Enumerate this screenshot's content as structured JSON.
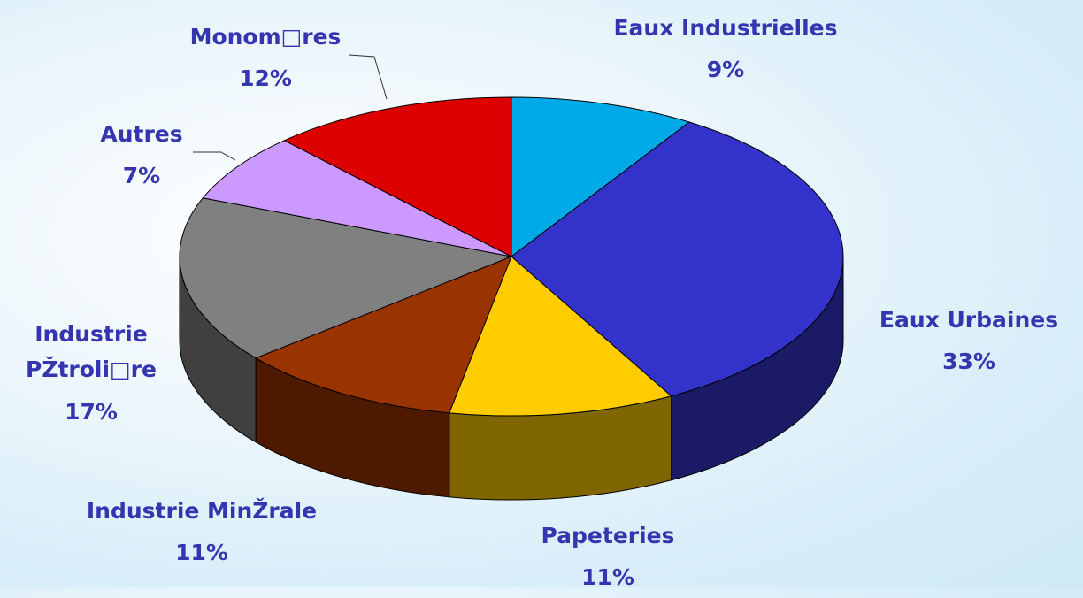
{
  "chart_data": {
    "type": "pie3d",
    "categories": [
      "Eaux Industrielles",
      "Eaux Urbaines",
      "Papeteries",
      "Industrie MinŽrale",
      "Industrie PŽtroli□re",
      "Autres",
      "Monom□res"
    ],
    "values": [
      9,
      33,
      11,
      11,
      17,
      7,
      12
    ],
    "value_labels": [
      "9%",
      "33%",
      "11%",
      "11%",
      "17%",
      "7%",
      "12%"
    ],
    "colors": [
      "#00aae8",
      "#3333cc",
      "#ffcc00",
      "#993300",
      "#808080",
      "#cc99ff",
      "#dd0000"
    ]
  }
}
